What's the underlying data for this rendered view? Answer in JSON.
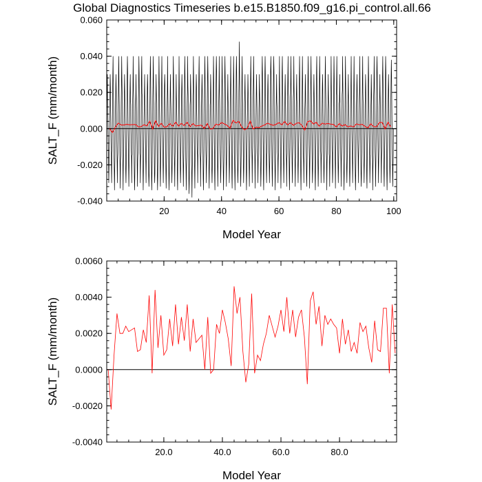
{
  "title": "Global Diagnostics Timeseries b.e15.B1850.f09_g16.pi_control.all.66",
  "colors": {
    "monthly": "#000000",
    "annual": "#ff0000",
    "zero_line": "#000000"
  },
  "chart_data": [
    {
      "type": "line",
      "xlabel": "Model Year",
      "ylabel": "SALT_F (mm/month)",
      "xlim": [
        0,
        101
      ],
      "ylim": [
        -0.04,
        0.06
      ],
      "xticks": [
        20,
        40,
        60,
        80,
        100
      ],
      "xtick_labels": [
        "20",
        "40",
        "60",
        "80",
        "100"
      ],
      "yticks": [
        -0.04,
        -0.02,
        0,
        0.02,
        0.04,
        0.06
      ],
      "ytick_labels": [
        "-0.040",
        "-0.020",
        "0.000",
        "0.020",
        "0.040",
        "0.060"
      ],
      "reference_line": 0,
      "grid": false,
      "series": [
        {
          "role": "monthly",
          "x_start": 0.0417,
          "x_step": 0.0833,
          "envelope_max": [
            0.03,
            0.03,
            0.04,
            0.03,
            0.04,
            0.04,
            0.03,
            0.04,
            0.03,
            0.04,
            0.03,
            0.04,
            0.04,
            0.03,
            0.03,
            0.04,
            0.04,
            0.03,
            0.04,
            0.04,
            0.03,
            0.04,
            0.03,
            0.04,
            0.03,
            0.04,
            0.03,
            0.04,
            0.04,
            0.03,
            0.04,
            0.03,
            0.04,
            0.03,
            0.04,
            0.04,
            0.03,
            0.04,
            0.04,
            0.04,
            0.04,
            0.04,
            0.03,
            0.04,
            0.04,
            0.04,
            0.048,
            0.04,
            0.03,
            0.03,
            0.04,
            0.04,
            0.03,
            0.03,
            0.04,
            0.04,
            0.03,
            0.04,
            0.04,
            0.03,
            0.04,
            0.04,
            0.03,
            0.04,
            0.04,
            0.04,
            0.03,
            0.04,
            0.04,
            0.03,
            0.04,
            0.04,
            0.03,
            0.04,
            0.04,
            0.03,
            0.04,
            0.03,
            0.04,
            0.04,
            0.04,
            0.03,
            0.04,
            0.04,
            0.03,
            0.04,
            0.04,
            0.03,
            0.04,
            0.04,
            0.03,
            0.04,
            0.03,
            0.04,
            0.04,
            0.03,
            0.04,
            0.04,
            0.03,
            0.038
          ],
          "envelope_min": [
            -0.03,
            -0.03,
            -0.034,
            -0.03,
            -0.033,
            -0.034,
            -0.03,
            -0.032,
            -0.03,
            -0.034,
            -0.032,
            -0.03,
            -0.034,
            -0.03,
            -0.032,
            -0.034,
            -0.03,
            -0.034,
            -0.032,
            -0.03,
            -0.033,
            -0.034,
            -0.03,
            -0.032,
            -0.034,
            -0.03,
            -0.032,
            -0.034,
            -0.036,
            -0.038,
            -0.033,
            -0.03,
            -0.032,
            -0.034,
            -0.03,
            -0.033,
            -0.03,
            -0.034,
            -0.032,
            -0.03,
            -0.034,
            -0.032,
            -0.03,
            -0.033,
            -0.034,
            -0.03,
            -0.032,
            -0.03,
            -0.034,
            -0.032,
            -0.03,
            -0.033,
            -0.03,
            -0.032,
            -0.034,
            -0.03,
            -0.03,
            -0.032,
            -0.034,
            -0.03,
            -0.033,
            -0.03,
            -0.032,
            -0.034,
            -0.03,
            -0.032,
            -0.03,
            -0.034,
            -0.03,
            -0.032,
            -0.033,
            -0.03,
            -0.034,
            -0.032,
            -0.03,
            -0.03,
            -0.034,
            -0.032,
            -0.03,
            -0.033,
            -0.03,
            -0.032,
            -0.034,
            -0.03,
            -0.032,
            -0.03,
            -0.034,
            -0.03,
            -0.032,
            -0.03,
            -0.033,
            -0.03,
            -0.034,
            -0.032,
            -0.03,
            -0.03,
            -0.032,
            -0.034,
            -0.03,
            -0.032
          ]
        },
        {
          "role": "annual",
          "x": [
            1,
            2,
            3,
            4,
            5,
            6,
            7,
            8,
            9,
            10,
            11,
            12,
            13,
            14,
            15,
            16,
            17,
            18,
            19,
            20,
            21,
            22,
            23,
            24,
            25,
            26,
            27,
            28,
            29,
            30,
            31,
            32,
            33,
            34,
            35,
            36,
            37,
            38,
            39,
            40,
            41,
            42,
            43,
            44,
            45,
            46,
            47,
            48,
            49,
            50,
            51,
            52,
            53,
            54,
            55,
            56,
            57,
            58,
            59,
            60,
            61,
            62,
            63,
            64,
            65,
            66,
            67,
            68,
            69,
            70,
            71,
            72,
            73,
            74,
            75,
            76,
            77,
            78,
            79,
            80,
            81,
            82,
            83,
            84,
            85,
            86,
            87,
            88,
            89,
            90,
            91,
            92,
            93,
            94,
            95,
            96,
            97,
            98,
            99
          ],
          "y": [
            0.0,
            -0.0022,
            0.0008,
            0.0031,
            0.002,
            0.002,
            0.0024,
            0.0021,
            0.0022,
            0.0023,
            0.001,
            0.0011,
            0.0022,
            0.0015,
            0.0041,
            -0.0002,
            0.0044,
            0.0012,
            0.003,
            0.0008,
            0.0011,
            0.0028,
            0.0013,
            0.0036,
            0.0014,
            0.0029,
            0.0016,
            0.0036,
            0.001,
            0.0028,
            0.0015,
            0.0017,
            0.0019,
            0.0,
            0.0029,
            -0.0002,
            0.0,
            0.0025,
            0.002,
            0.0033,
            0.0026,
            0.0017,
            0.0002,
            0.0046,
            0.0031,
            0.004,
            0.001,
            -0.0007,
            0.0003,
            0.0042,
            -0.0002,
            0.0008,
            0.0005,
            0.0014,
            0.002,
            0.003,
            0.0024,
            0.0018,
            0.0024,
            0.0033,
            0.0021,
            0.004,
            0.002,
            0.0033,
            0.0018,
            0.0029,
            0.0033,
            0.0018,
            -0.0008,
            0.0038,
            0.0043,
            0.0025,
            0.0035,
            0.0013,
            0.003,
            0.0025,
            0.0028,
            0.0025,
            0.0023,
            0.0009,
            0.0028,
            0.0014,
            0.0022,
            0.001,
            0.0015,
            0.0009,
            0.0026,
            0.0021,
            0.0024,
            0.0012,
            0.0004,
            0.0027,
            0.0011,
            0.001,
            0.0034,
            0.0034,
            -0.0002,
            0.0036,
            0.0009
          ]
        }
      ]
    },
    {
      "type": "line",
      "xlabel": "Model Year",
      "ylabel": "SALT_F (mm/month)",
      "xlim": [
        0.5,
        99.5
      ],
      "ylim": [
        -0.004,
        0.006
      ],
      "xticks": [
        20,
        40,
        60,
        80
      ],
      "xtick_labels": [
        "20.0",
        "40.0",
        "60.0",
        "80.0"
      ],
      "yticks": [
        -0.004,
        -0.002,
        0,
        0.002,
        0.004,
        0.006
      ],
      "ytick_labels": [
        "-0.0040",
        "-0.0020",
        "0.0000",
        "0.0020",
        "0.0040",
        "0.0060"
      ],
      "reference_line": 0,
      "grid": false,
      "series": [
        {
          "role": "annual",
          "x": [
            1,
            2,
            3,
            4,
            5,
            6,
            7,
            8,
            9,
            10,
            11,
            12,
            13,
            14,
            15,
            16,
            17,
            18,
            19,
            20,
            21,
            22,
            23,
            24,
            25,
            26,
            27,
            28,
            29,
            30,
            31,
            32,
            33,
            34,
            35,
            36,
            37,
            38,
            39,
            40,
            41,
            42,
            43,
            44,
            45,
            46,
            47,
            48,
            49,
            50,
            51,
            52,
            53,
            54,
            55,
            56,
            57,
            58,
            59,
            60,
            61,
            62,
            63,
            64,
            65,
            66,
            67,
            68,
            69,
            70,
            71,
            72,
            73,
            74,
            75,
            76,
            77,
            78,
            79,
            80,
            81,
            82,
            83,
            84,
            85,
            86,
            87,
            88,
            89,
            90,
            91,
            92,
            93,
            94,
            95,
            96,
            97,
            98,
            99
          ],
          "y": [
            0.0,
            -0.0022,
            0.0008,
            0.0031,
            0.002,
            0.002,
            0.0024,
            0.0021,
            0.0022,
            0.0023,
            0.001,
            0.0011,
            0.0022,
            0.0015,
            0.0041,
            -0.0002,
            0.0044,
            0.0012,
            0.003,
            0.0008,
            0.0011,
            0.0028,
            0.0013,
            0.0036,
            0.0014,
            0.0029,
            0.0016,
            0.0036,
            0.001,
            0.0028,
            0.0015,
            0.0017,
            0.0019,
            0.0,
            0.0029,
            -0.0002,
            0.0,
            0.0025,
            0.002,
            0.0033,
            0.0026,
            0.0017,
            0.0002,
            0.0046,
            0.0031,
            0.004,
            0.001,
            -0.0007,
            0.0003,
            0.0042,
            -0.0002,
            0.0008,
            0.0005,
            0.0014,
            0.002,
            0.003,
            0.0024,
            0.0018,
            0.0024,
            0.0033,
            0.0021,
            0.004,
            0.002,
            0.0033,
            0.0018,
            0.0029,
            0.0033,
            0.0018,
            -0.0008,
            0.0038,
            0.0043,
            0.0025,
            0.0035,
            0.0013,
            0.003,
            0.0025,
            0.0028,
            0.0025,
            0.0023,
            0.0009,
            0.0028,
            0.0014,
            0.0022,
            0.001,
            0.0015,
            0.0009,
            0.0026,
            0.0021,
            0.0024,
            0.0012,
            0.0004,
            0.0027,
            0.0011,
            0.001,
            0.0034,
            0.0034,
            -0.0002,
            0.0036,
            0.0009
          ]
        }
      ]
    }
  ]
}
